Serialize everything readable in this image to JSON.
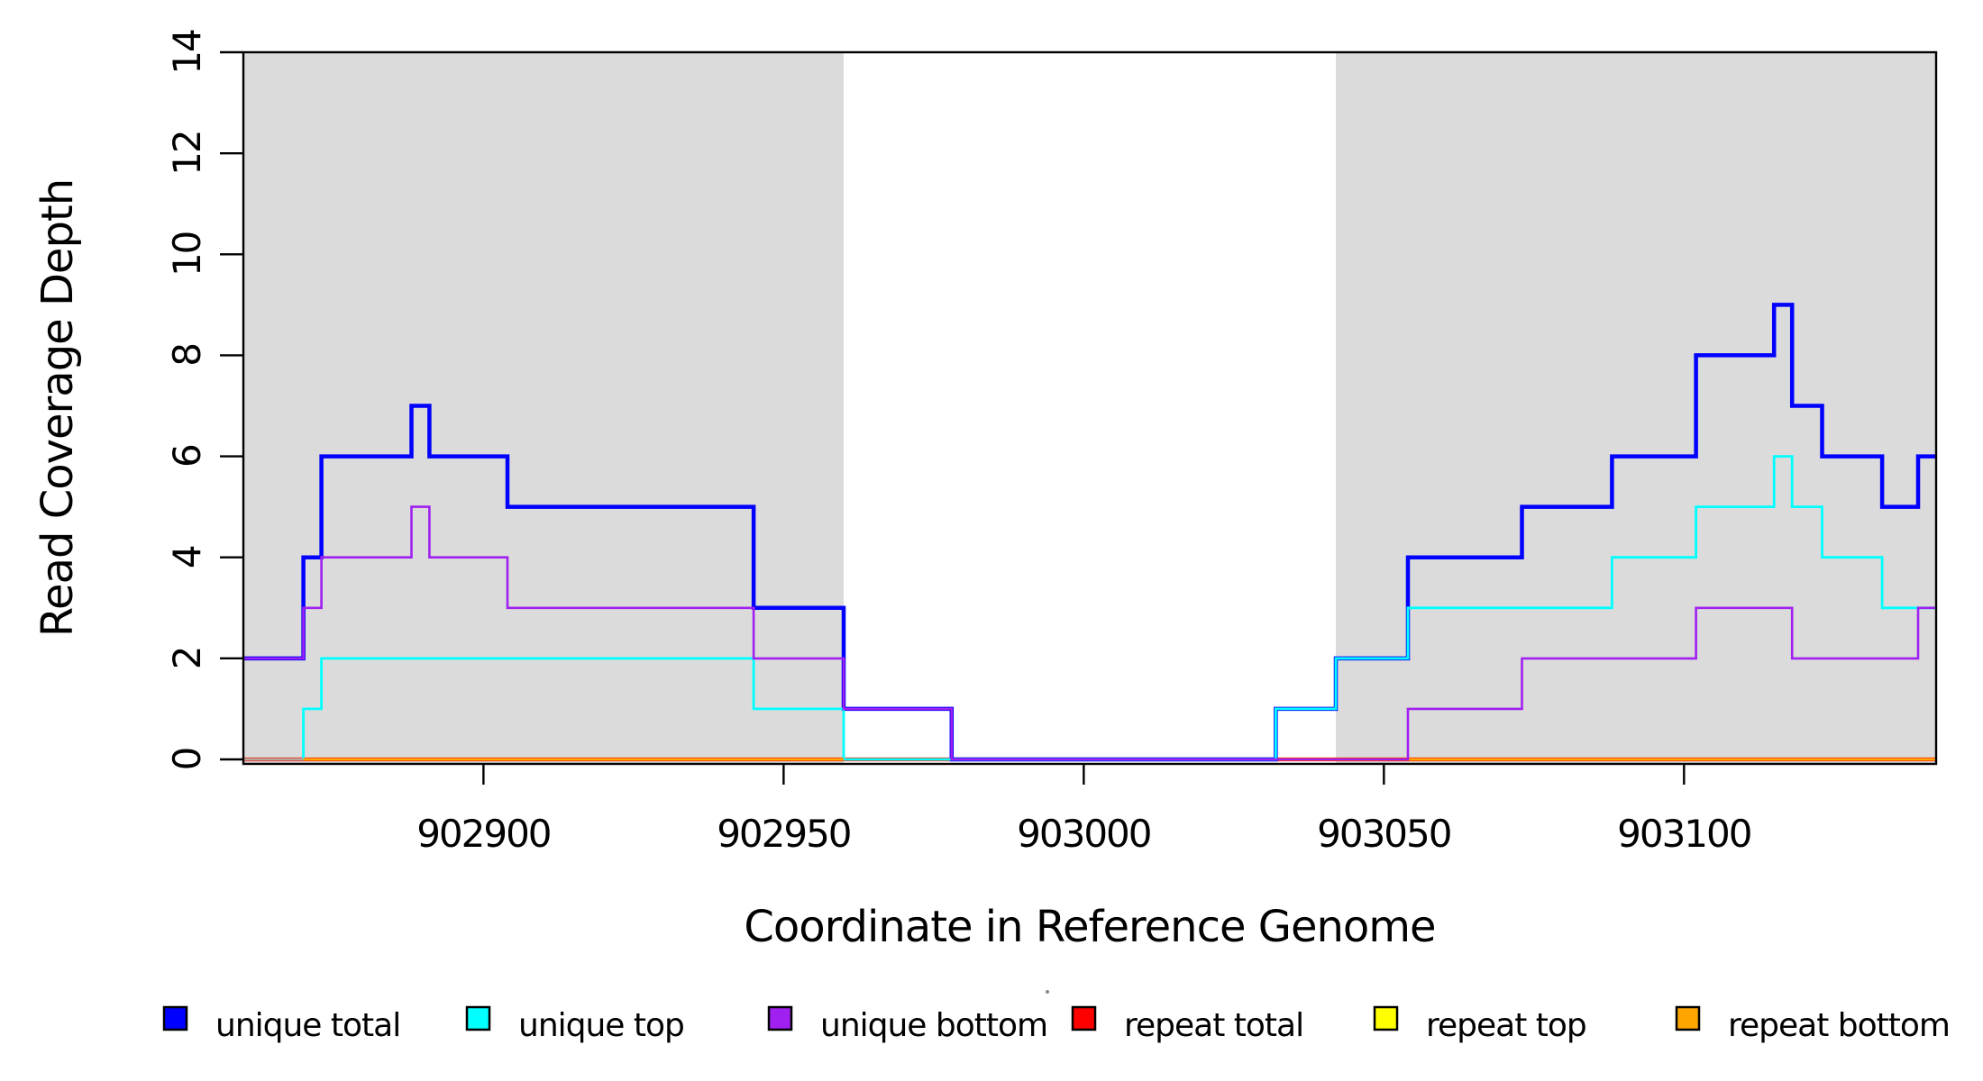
{
  "chart_data": {
    "type": "line",
    "subtype": "step-coverage-plot",
    "title": "",
    "xlabel": "Coordinate in Reference Genome",
    "ylabel": "Read Coverage Depth",
    "xlim": [
      902860,
      903142
    ],
    "ylim": [
      0,
      14.1
    ],
    "grid": false,
    "x_ticks": [
      902900,
      902950,
      903000,
      903050,
      903100
    ],
    "y_ticks": [
      0,
      2,
      4,
      6,
      8,
      10,
      12,
      14
    ],
    "shaded_regions": [
      {
        "from": 902860,
        "to": 902960,
        "color": "#DBDBDB"
      },
      {
        "from": 903042,
        "to": 903142,
        "color": "#DBDBDB"
      }
    ],
    "series": [
      {
        "name": "unique total",
        "color": "#0000FF",
        "width": 4.5,
        "steps": [
          [
            902860,
            2
          ],
          [
            902870,
            4
          ],
          [
            902873,
            6
          ],
          [
            902888,
            7
          ],
          [
            902891,
            6
          ],
          [
            902904,
            5
          ],
          [
            902945,
            3
          ],
          [
            902960,
            1
          ],
          [
            902978,
            0
          ],
          [
            903032,
            1
          ],
          [
            903042,
            2
          ],
          [
            903054,
            4
          ],
          [
            903073,
            5
          ],
          [
            903088,
            6
          ],
          [
            903102,
            8
          ],
          [
            903115,
            9
          ],
          [
            903118,
            7
          ],
          [
            903123,
            6
          ],
          [
            903133,
            5
          ],
          [
            903139,
            6
          ]
        ]
      },
      {
        "name": "unique top",
        "color": "#00FFFF",
        "width": 2.8,
        "steps": [
          [
            902860,
            0
          ],
          [
            902870,
            1
          ],
          [
            902873,
            2
          ],
          [
            902945,
            1
          ],
          [
            902960,
            0
          ],
          [
            903032,
            1
          ],
          [
            903042,
            2
          ],
          [
            903054,
            3
          ],
          [
            903088,
            4
          ],
          [
            903102,
            5
          ],
          [
            903115,
            6
          ],
          [
            903118,
            5
          ],
          [
            903123,
            4
          ],
          [
            903133,
            3
          ]
        ]
      },
      {
        "name": "unique bottom",
        "color": "#A020F0",
        "width": 2.6,
        "steps": [
          [
            902860,
            2
          ],
          [
            902870,
            3
          ],
          [
            902873,
            4
          ],
          [
            902888,
            5
          ],
          [
            902891,
            4
          ],
          [
            902904,
            3
          ],
          [
            902945,
            2
          ],
          [
            902960,
            1
          ],
          [
            902978,
            0
          ],
          [
            903054,
            1
          ],
          [
            903073,
            2
          ],
          [
            903102,
            3
          ],
          [
            903118,
            2
          ],
          [
            903139,
            3
          ]
        ]
      },
      {
        "name": "repeat total",
        "color": "#FF0000",
        "width": 4.2,
        "steps": [
          [
            902860,
            0
          ]
        ]
      },
      {
        "name": "repeat top",
        "color": "#FFFF00",
        "width": 2.8,
        "steps": [
          [
            902860,
            0
          ]
        ]
      },
      {
        "name": "repeat bottom",
        "color": "#FFA500",
        "width": 2.8,
        "steps": [
          [
            902860,
            0
          ]
        ]
      }
    ],
    "baseline_overlays": [
      {
        "from": 902860,
        "to": 902870,
        "color": "#B7A699",
        "width": 3.0
      },
      {
        "from": 902870,
        "to": 902960,
        "color": "#FFA500",
        "width": 2.8
      }
    ],
    "legend": {
      "position": "bottom",
      "entries": [
        {
          "label": "unique total",
          "color": "#0000FF"
        },
        {
          "label": "unique top",
          "color": "#00FFFF"
        },
        {
          "label": "unique bottom",
          "color": "#A020F0"
        },
        {
          "label": "repeat total",
          "color": "#FF0000"
        },
        {
          "label": "repeat top",
          "color": "#FFFF00"
        },
        {
          "label": "repeat bottom",
          "color": "#FFA500"
        }
      ]
    }
  }
}
